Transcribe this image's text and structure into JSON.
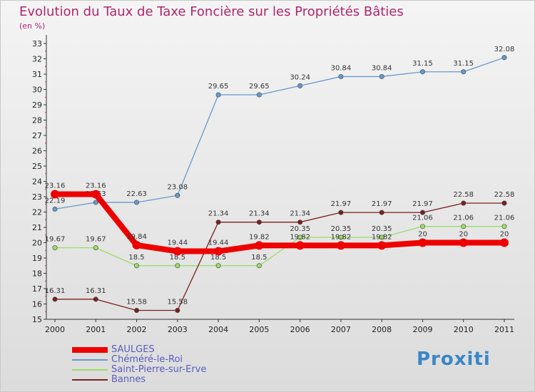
{
  "title": "Evolution du Taux de Taxe Foncière sur les Propriétés Bâties",
  "subtitle": "(en %)",
  "logo": "Proxiti",
  "chart_data": {
    "type": "line",
    "title": "Evolution du Taux de Taxe Foncière sur les Propriétés Bâties",
    "ylabel": "(en %)",
    "xlabel": "",
    "ylim": [
      15,
      33
    ],
    "yticks": [
      15,
      16,
      17,
      18,
      19,
      20,
      21,
      22,
      23,
      24,
      25,
      26,
      27,
      28,
      29,
      30,
      31,
      32,
      33
    ],
    "grid": false,
    "legend_position": "bottom-left",
    "categories": [
      "2000",
      "2001",
      "2002",
      "2003",
      "2004",
      "2005",
      "2006",
      "2007",
      "2008",
      "2009",
      "2010",
      "2011"
    ],
    "series": [
      {
        "name": "SAULGES",
        "color": "#ee0000",
        "line_style": "bold",
        "values": [
          23.16,
          23.16,
          19.84,
          19.44,
          19.44,
          19.82,
          19.82,
          19.82,
          19.82,
          20,
          20,
          20
        ],
        "labels": [
          "23.16",
          "23.16",
          "19.84",
          "19.44",
          "19.44",
          "19.82",
          "19.82",
          "19.82",
          "19.82",
          "20",
          "20",
          "20"
        ]
      },
      {
        "name": "Chéméré-le-Roi",
        "color": "#6699cc",
        "line_style": "thin",
        "values": [
          22.19,
          22.63,
          22.63,
          23.08,
          29.65,
          29.65,
          30.24,
          30.84,
          30.84,
          31.15,
          31.15,
          32.08
        ],
        "labels": [
          "22.19",
          "22.63",
          "22.63",
          "23.08",
          "29.65",
          "29.65",
          "30.24",
          "30.84",
          "30.84",
          "31.15",
          "31.15",
          "32.08"
        ]
      },
      {
        "name": "Saint-Pierre-sur-Erve",
        "color": "#99dd66",
        "line_style": "thin",
        "values": [
          19.67,
          19.67,
          18.5,
          18.5,
          18.5,
          18.5,
          20.35,
          20.35,
          20.35,
          21.06,
          21.06,
          21.06
        ],
        "labels": [
          "19.67",
          "19.67",
          "18.5",
          "18.5",
          "18.5",
          "18.5",
          "20.35",
          "20.35",
          "20.35",
          "21.06",
          "21.06",
          "21.06"
        ]
      },
      {
        "name": "Bannes",
        "color": "#7a2020",
        "line_style": "thin",
        "values": [
          16.31,
          16.31,
          15.58,
          15.58,
          21.34,
          21.34,
          21.34,
          21.97,
          21.97,
          21.97,
          22.58,
          22.58
        ],
        "labels": [
          "16.31",
          "16.31",
          "15.58",
          "15.58",
          "21.34",
          "21.34",
          "21.34",
          "21.97",
          "21.97",
          "21.97",
          "22.58",
          "22.58"
        ]
      }
    ]
  }
}
